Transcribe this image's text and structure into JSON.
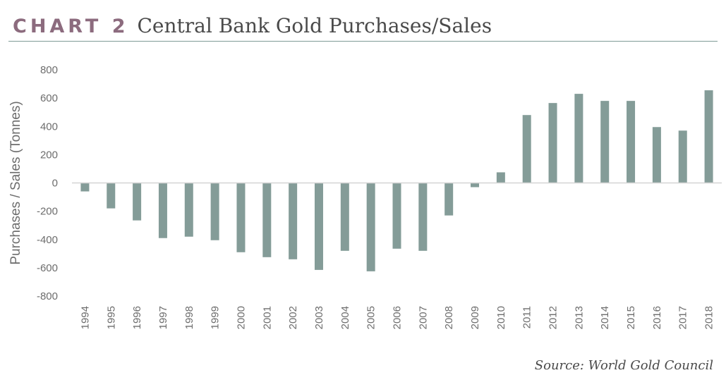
{
  "header": {
    "chart_label": "CHART 2",
    "title": "Central Bank Gold Purchases/Sales"
  },
  "source": "Source: World Gold Council",
  "colors": {
    "bar": "#849c98",
    "label_accent": "#8c6b7e",
    "rule": "#7f9b97"
  },
  "chart_data": {
    "type": "bar",
    "title": "Central Bank Gold Purchases/Sales",
    "xlabel": "",
    "ylabel": "Purchases / Sales (Tonnes)",
    "ylim": [
      -800,
      800
    ],
    "yticks": [
      800,
      600,
      400,
      200,
      0,
      -200,
      -400,
      -600,
      -800
    ],
    "ytick_labels": [
      "800",
      "600",
      "400",
      "200",
      "0",
      "-200",
      "-400",
      "-600",
      "-800"
    ],
    "grid": false,
    "categories": [
      "1994",
      "1995",
      "1996",
      "1997",
      "1998",
      "1999",
      "2000",
      "2001",
      "2002",
      "2003",
      "2004",
      "2005",
      "2006",
      "2007",
      "2008",
      "2009",
      "2010",
      "2011",
      "2012",
      "2013",
      "2014",
      "2015",
      "2016",
      "2017",
      "2018"
    ],
    "values": [
      -60,
      -180,
      -265,
      -390,
      -380,
      -405,
      -490,
      -525,
      -540,
      -615,
      -480,
      -625,
      -465,
      -480,
      -230,
      -30,
      75,
      480,
      565,
      630,
      580,
      580,
      395,
      370,
      655
    ]
  }
}
